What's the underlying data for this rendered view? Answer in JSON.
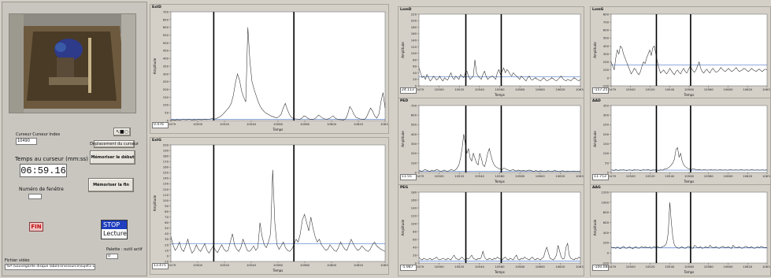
{
  "left_panel": {
    "cursor_index_label": "Curseur Curseur Index",
    "cursor_index_value": "10490",
    "move_cursor_button": "Déplacement du curseur",
    "time_label": "Temps au curseur (mm:ss)",
    "time_value": "06:59.16",
    "memorize_start_button": "Mémoriser le début",
    "memorize_end_button": "Mémoriser la fin",
    "window_number_label": "Numéro de fenêtre",
    "fin_button": "FIN",
    "stop_label": "STOP",
    "lecture_label": "Lecture",
    "palette_label": "Palette : outil actif",
    "palette_value": "0",
    "video_file_label": "Fichier vidéo",
    "video_file_value": "%P:\\Sauvegarde disque labo\\Fonissource\\sujet1-1.avi"
  },
  "x_tick_labels": [
    "10479",
    "10500",
    "10520",
    "10540",
    "10560",
    "10580",
    "10600",
    "10620",
    "10634"
  ],
  "xlabel": "Temps",
  "ylabel": "Amplitude",
  "colors": {
    "signal": "#2a2a2a",
    "baseline": "#4a78c8",
    "cursor": "#000000",
    "plot_bg": "#ffffff",
    "frame": "#d4d0c8"
  },
  "chart_data": [
    {
      "title": "ExtD",
      "type": "line",
      "min_value": "0.476",
      "yticks": [
        "0",
        "50",
        "100",
        "150",
        "200",
        "250",
        "300",
        "350",
        "400",
        "450",
        "500",
        "550",
        "600",
        "650",
        "700"
      ],
      "ylim": [
        0,
        700
      ],
      "baseline": 8,
      "cursors": [
        10510,
        10568
      ],
      "y": [
        4,
        5,
        3,
        6,
        4,
        5,
        7,
        5,
        6,
        8,
        4,
        6,
        5,
        7,
        6,
        5,
        8,
        6,
        7,
        10,
        12,
        9,
        14,
        20,
        28,
        40,
        55,
        70,
        85,
        110,
        160,
        240,
        300,
        260,
        190,
        150,
        120,
        600,
        380,
        250,
        200,
        160,
        120,
        90,
        70,
        55,
        45,
        38,
        30,
        25,
        20,
        18,
        25,
        40,
        80,
        110,
        70,
        40,
        20,
        12,
        10,
        9,
        8,
        15,
        30,
        25,
        12,
        8,
        6,
        10,
        20,
        35,
        25,
        15,
        10,
        8,
        12,
        20,
        30,
        15,
        8,
        6,
        5,
        4,
        10,
        40,
        90,
        70,
        40,
        20,
        15,
        10,
        8,
        6,
        20,
        50,
        80,
        60,
        30,
        15,
        40,
        120,
        180,
        80
      ]
    },
    {
      "title": "ExtG",
      "type": "line",
      "min_value": "13.475",
      "yticks": [
        "-10",
        "0",
        "10",
        "20",
        "30",
        "40",
        "50",
        "60",
        "70",
        "80",
        "90",
        "100",
        "110",
        "120",
        "130",
        "140",
        "150",
        "160",
        "170",
        "180",
        "190",
        "200"
      ],
      "ylim": [
        -10,
        200
      ],
      "baseline": 22,
      "cursors": [
        10510,
        10568
      ],
      "y": [
        35,
        20,
        10,
        15,
        25,
        12,
        8,
        18,
        30,
        15,
        5,
        10,
        20,
        12,
        8,
        15,
        22,
        10,
        5,
        12,
        18,
        10,
        6,
        14,
        20,
        12,
        8,
        10,
        25,
        40,
        20,
        12,
        8,
        15,
        30,
        20,
        10,
        8,
        12,
        18,
        10,
        15,
        60,
        35,
        20,
        15,
        25,
        40,
        155,
        60,
        20,
        12,
        18,
        25,
        15,
        10,
        8,
        12,
        20,
        30,
        25,
        40,
        65,
        75,
        60,
        45,
        70,
        50,
        35,
        25,
        30,
        20,
        15,
        10,
        12,
        20,
        15,
        10,
        8,
        15,
        25,
        18,
        12,
        10,
        20,
        30,
        22,
        15,
        10,
        12,
        18,
        14,
        10,
        8,
        12,
        20,
        25,
        18,
        15,
        12,
        10,
        8
      ]
    },
    {
      "title": "LomD",
      "type": "line",
      "min_value": "24.113",
      "yticks": [
        "0",
        "20",
        "40",
        "60",
        "80",
        "100",
        "120",
        "140",
        "160",
        "180",
        "200",
        "220"
      ],
      "ylim": [
        0,
        220
      ],
      "baseline": 28,
      "cursors": [
        10524,
        10558
      ],
      "y": [
        55,
        40,
        25,
        30,
        20,
        35,
        25,
        15,
        20,
        30,
        25,
        18,
        22,
        30,
        20,
        15,
        25,
        20,
        18,
        30,
        40,
        25,
        20,
        30,
        25,
        20,
        35,
        30,
        25,
        40,
        45,
        30,
        20,
        25,
        30,
        80,
        40,
        30,
        25,
        20,
        35,
        45,
        30,
        20,
        25,
        28,
        30,
        25,
        20,
        40,
        50,
        35,
        45,
        55,
        40,
        50,
        45,
        35,
        30,
        40,
        35,
        30,
        25,
        20,
        30,
        25,
        20,
        15,
        25,
        30,
        20,
        18,
        22,
        25,
        20,
        18,
        15,
        20,
        25,
        20,
        15,
        18,
        20,
        25,
        22,
        18,
        15,
        20,
        25,
        30,
        22,
        18,
        15,
        20,
        18,
        15,
        20,
        25,
        22,
        18,
        15,
        20
      ]
    },
    {
      "title": "LomG",
      "type": "line",
      "min_value": "-157.25",
      "yticks": [
        "-100",
        "0",
        "100",
        "200",
        "300",
        "400",
        "500",
        "600",
        "700",
        "800"
      ],
      "ylim": [
        -100,
        800
      ],
      "baseline": 160,
      "cursors": [
        10524,
        10558
      ],
      "y": [
        200,
        150,
        100,
        250,
        350,
        300,
        400,
        380,
        300,
        250,
        200,
        150,
        100,
        50,
        80,
        120,
        100,
        60,
        40,
        80,
        150,
        200,
        180,
        250,
        300,
        350,
        280,
        380,
        400,
        300,
        200,
        120,
        60,
        80,
        100,
        70,
        50,
        80,
        120,
        90,
        60,
        40,
        80,
        100,
        70,
        50,
        90,
        120,
        80,
        60,
        100,
        140,
        120,
        90,
        70,
        100,
        150,
        200,
        120,
        80,
        60,
        90,
        110,
        80,
        60,
        100,
        120,
        90,
        70,
        80,
        100,
        130,
        110,
        90,
        80,
        100,
        120,
        100,
        80,
        90,
        110,
        130,
        100,
        80,
        90,
        100,
        120,
        110,
        90,
        80,
        100,
        120,
        100,
        90,
        80,
        100,
        110,
        90,
        80,
        100,
        110,
        100
      ]
    },
    {
      "title": "PED",
      "type": "line",
      "min_value": "11.55",
      "yticks": [
        "0",
        "100",
        "200",
        "300",
        "400",
        "500",
        "600",
        "700"
      ],
      "ylim": [
        0,
        700
      ],
      "baseline": 12,
      "cursors": [
        10524,
        10558
      ],
      "y": [
        20,
        15,
        10,
        25,
        30,
        20,
        15,
        10,
        25,
        15,
        20,
        30,
        25,
        15,
        10,
        20,
        25,
        15,
        10,
        20,
        30,
        25,
        20,
        30,
        50,
        80,
        150,
        250,
        400,
        300,
        200,
        250,
        150,
        120,
        200,
        150,
        100,
        80,
        200,
        150,
        80,
        60,
        120,
        200,
        250,
        180,
        120,
        80,
        60,
        50,
        40,
        35,
        30,
        45,
        40,
        30,
        25,
        20,
        25,
        30,
        20,
        15,
        25,
        20,
        15,
        20,
        18,
        15,
        20,
        25,
        20,
        15,
        10,
        20,
        15,
        12,
        18,
        15,
        12,
        10,
        15,
        18,
        12,
        10,
        15,
        20,
        15,
        12,
        10,
        15,
        18,
        12,
        10,
        15,
        12,
        10,
        12,
        15,
        12,
        10,
        12,
        15
      ]
    },
    {
      "title": "AAD",
      "type": "line",
      "min_value": "11.753",
      "yticks": [
        "0",
        "50",
        "100",
        "150",
        "200",
        "250",
        "300",
        "350"
      ],
      "ylim": [
        0,
        350
      ],
      "baseline": 12,
      "cursors": [
        10524,
        10558
      ],
      "y": [
        14,
        12,
        10,
        15,
        12,
        10,
        14,
        12,
        15,
        12,
        10,
        12,
        14,
        12,
        10,
        15,
        12,
        14,
        12,
        10,
        12,
        15,
        12,
        14,
        16,
        12,
        10,
        14,
        12,
        15,
        12,
        10,
        14,
        12,
        15,
        20,
        18,
        25,
        30,
        40,
        50,
        70,
        120,
        130,
        80,
        100,
        60,
        40,
        30,
        25,
        20,
        18,
        15,
        20,
        18,
        15,
        14,
        16,
        14,
        12,
        15,
        14,
        12,
        13,
        14,
        15,
        12,
        14,
        13,
        12,
        14,
        15,
        12,
        13,
        14,
        12,
        13,
        15,
        14,
        12,
        13,
        14,
        12,
        13,
        15,
        14,
        12,
        13,
        14,
        12,
        13,
        15,
        14,
        12,
        13,
        14,
        12,
        13,
        14,
        12,
        13,
        14
      ]
    },
    {
      "title": "PEG",
      "type": "line",
      "min_value": "-5.987",
      "yticks": [
        "0",
        "20",
        "40",
        "60",
        "80",
        "100",
        "120",
        "140",
        "160",
        "180"
      ],
      "ylim": [
        0,
        180
      ],
      "baseline": 5,
      "cursors": [
        10524,
        10558
      ],
      "y": [
        15,
        10,
        8,
        12,
        10,
        8,
        10,
        12,
        8,
        10,
        12,
        15,
        10,
        8,
        10,
        12,
        10,
        8,
        12,
        10,
        8,
        15,
        20,
        12,
        10,
        8,
        12,
        15,
        10,
        8,
        12,
        10,
        15,
        20,
        12,
        10,
        8,
        12,
        10,
        15,
        30,
        15,
        10,
        8,
        12,
        10,
        8,
        12,
        10,
        15,
        12,
        10,
        8,
        12,
        15,
        10,
        8,
        12,
        10,
        8,
        15,
        20,
        10,
        8,
        12,
        10,
        15,
        12,
        10,
        8,
        12,
        15,
        10,
        8,
        12,
        10,
        8,
        12,
        15,
        30,
        40,
        25,
        12,
        10,
        8,
        12,
        20,
        45,
        30,
        15,
        10,
        12,
        40,
        50,
        20,
        12,
        10,
        8,
        12,
        10,
        15,
        12
      ]
    },
    {
      "title": "AAG",
      "type": "line",
      "min_value": "-100.088",
      "yticks": [
        "-200",
        "0",
        "200",
        "400",
        "600",
        "800",
        "1000",
        "1200"
      ],
      "ylim": [
        -200,
        1200
      ],
      "baseline": 100,
      "cursors": [
        10524,
        10558
      ],
      "y": [
        120,
        100,
        110,
        90,
        120,
        100,
        80,
        110,
        130,
        100,
        90,
        110,
        120,
        100,
        80,
        110,
        120,
        100,
        90,
        110,
        130,
        100,
        120,
        110,
        100,
        120,
        90,
        110,
        130,
        100,
        120,
        110,
        100,
        120,
        130,
        150,
        200,
        400,
        1000,
        600,
        300,
        150,
        120,
        100,
        90,
        110,
        120,
        100,
        90,
        110,
        130,
        120,
        100,
        90,
        150,
        130,
        100,
        110,
        120,
        90,
        100,
        120,
        110,
        100,
        150,
        120,
        100,
        110,
        120,
        100,
        90,
        110,
        130,
        120,
        100,
        110,
        120,
        100,
        90,
        150,
        120,
        100,
        110,
        120,
        100,
        90,
        110,
        130,
        120,
        100,
        110,
        120,
        100,
        90,
        110,
        120,
        100,
        130,
        120,
        100,
        110,
        100
      ]
    }
  ]
}
